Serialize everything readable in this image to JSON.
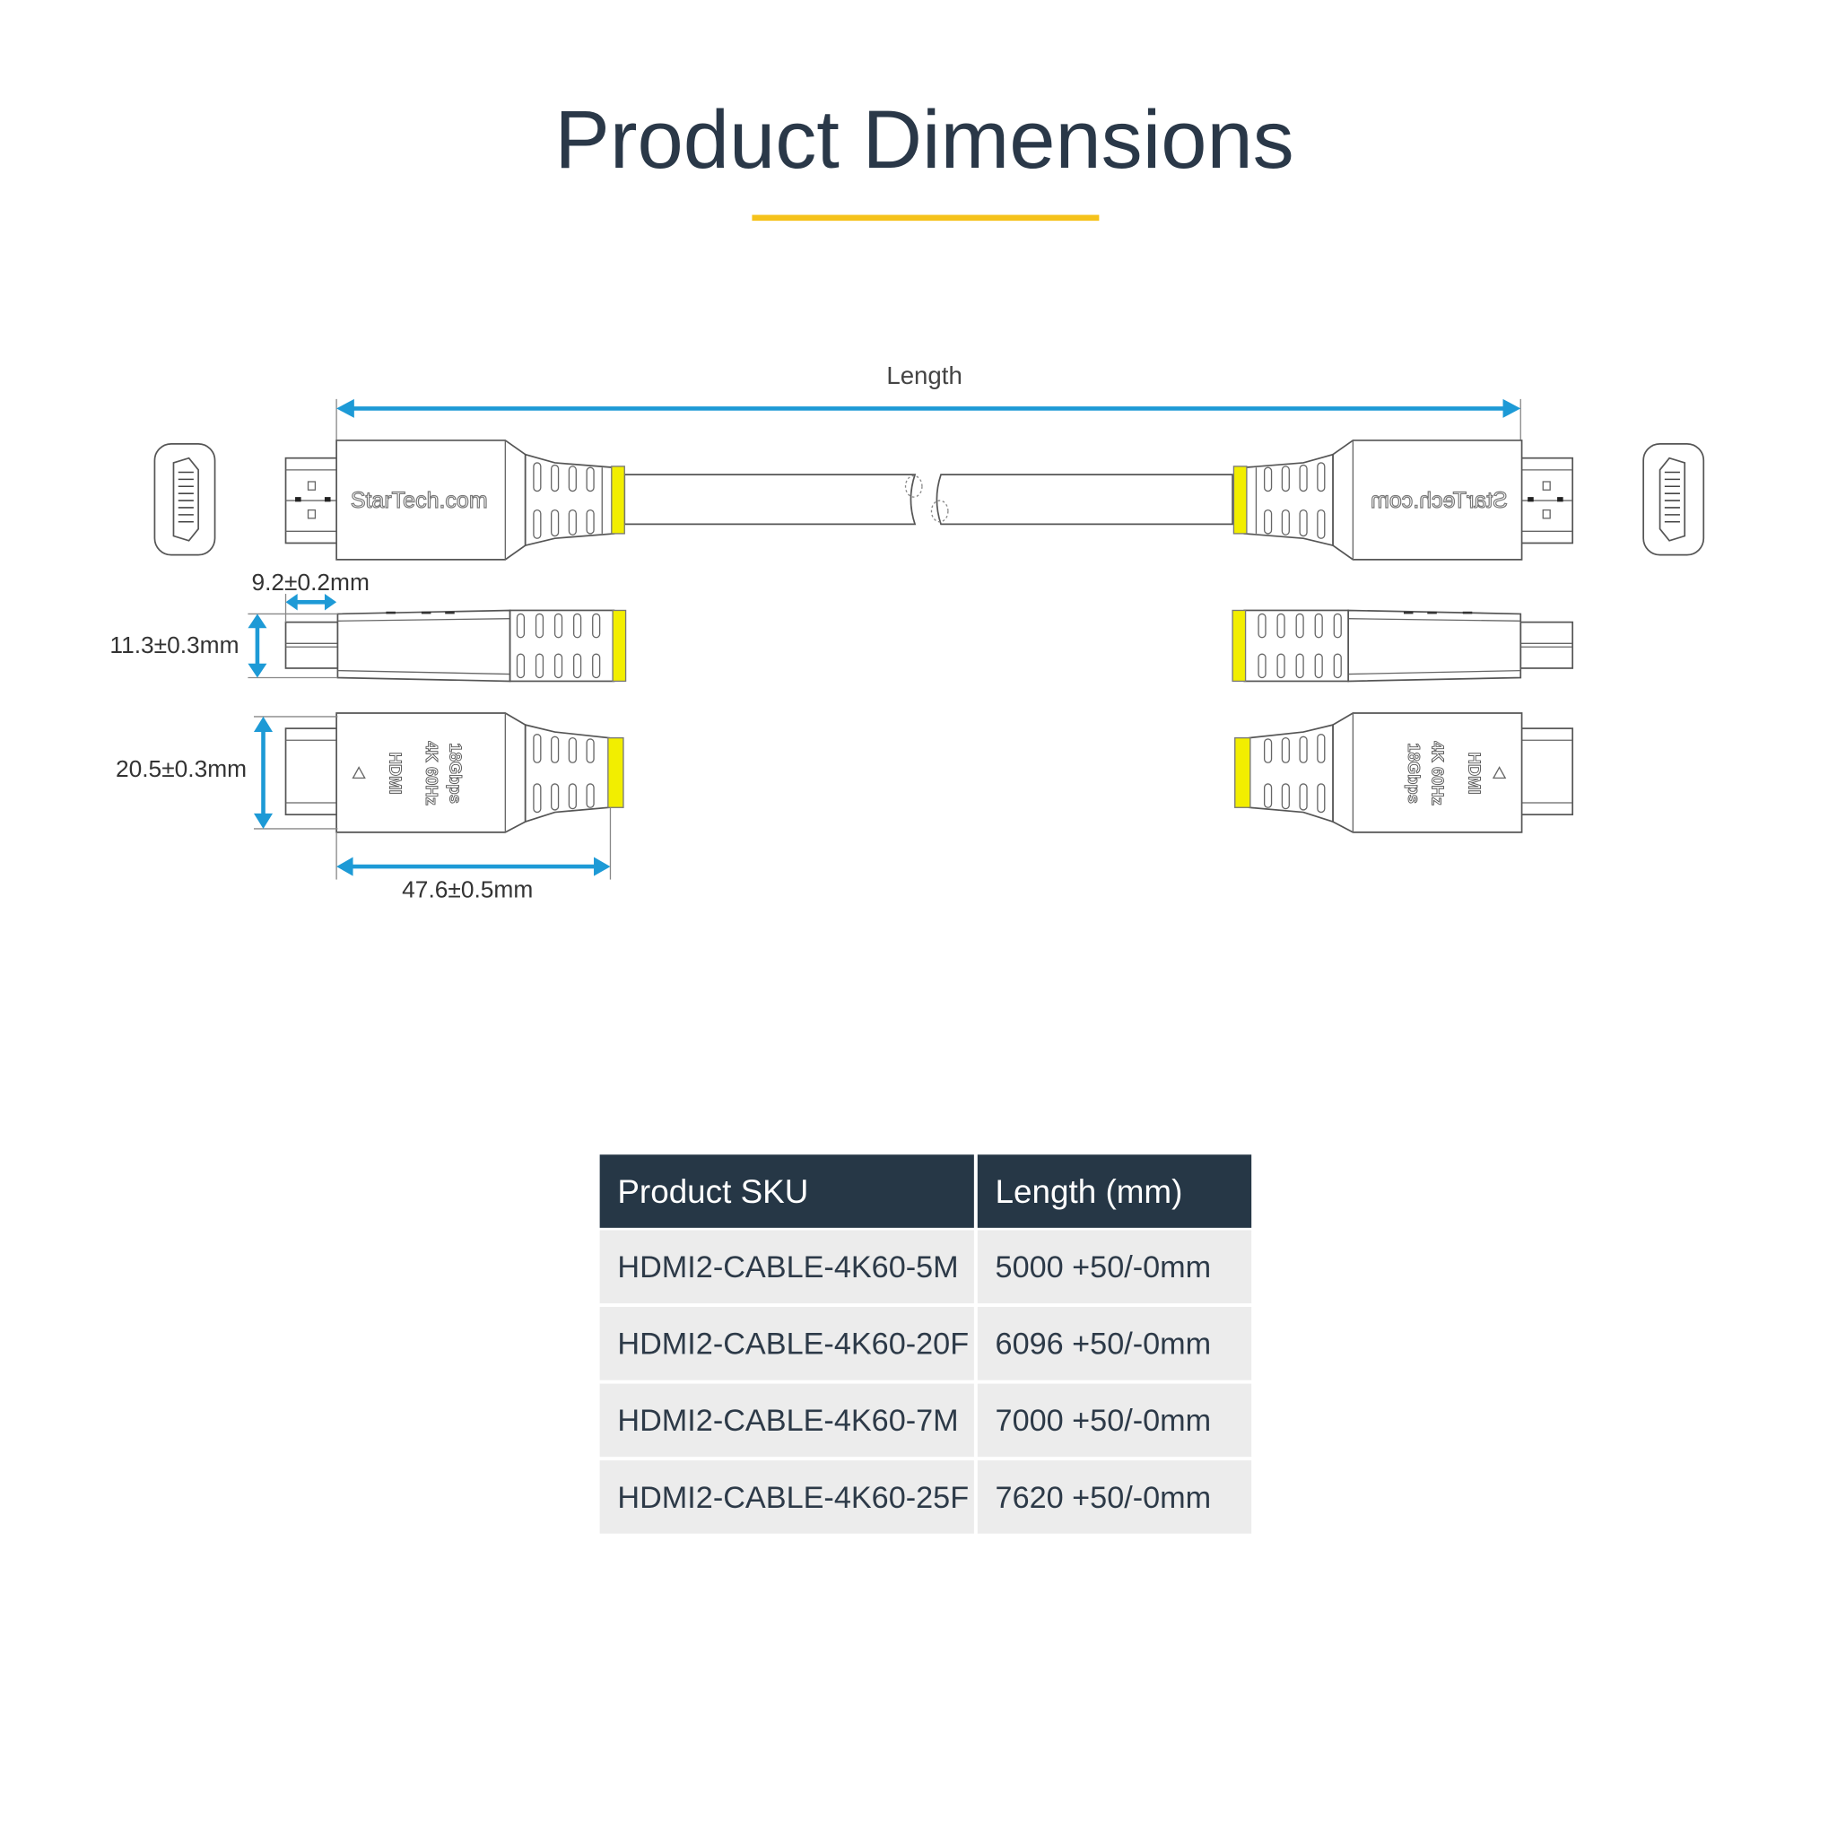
{
  "header": {
    "title": "Product Dimensions",
    "accent_color": "#f5c21b"
  },
  "diagram": {
    "length_label": "Length",
    "connector_tip_label": "9.2±0.2mm",
    "connector_height_label": "11.3±0.3mm",
    "connector_width_label": "20.5±0.3mm",
    "connector_length_label": "47.6±0.5mm",
    "brand_logo": "StarTech.com",
    "connector_marking": [
      "HDMI",
      "4K 60Hz",
      "18Gbps"
    ],
    "dimension_color": "#1d9ad6",
    "strain_relief_color": "#f2ee00"
  },
  "table": {
    "headers": [
      "Product SKU",
      "Length (mm)"
    ],
    "rows": [
      [
        "HDMI2-CABLE-4K60-5M",
        "5000 +50/-0mm"
      ],
      [
        "HDMI2-CABLE-4K60-20F",
        "6096 +50/-0mm"
      ],
      [
        "HDMI2-CABLE-4K60-7M",
        "7000 +50/-0mm"
      ],
      [
        "HDMI2-CABLE-4K60-25F",
        "7620 +50/-0mm"
      ]
    ],
    "header_color": "#263746",
    "row_color": "#ececec"
  }
}
